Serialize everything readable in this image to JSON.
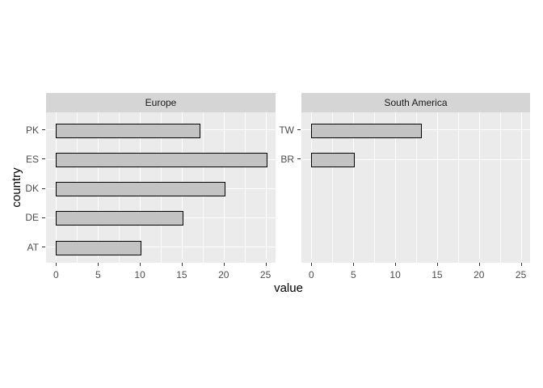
{
  "chart_data": {
    "type": "bar",
    "orientation": "horizontal",
    "title": "",
    "xlabel": "value",
    "ylabel": "country",
    "xlim": [
      -1.25,
      26.25
    ],
    "x_major_ticks": [
      0,
      5,
      10,
      15,
      20,
      25
    ],
    "x_minor_ticks": [
      2.5,
      7.5,
      12.5,
      17.5,
      22.5
    ],
    "grid": "on",
    "legend": "none",
    "facets": [
      {
        "label": "Europe",
        "categories": [
          "PK",
          "ES",
          "DK",
          "DE",
          "AT"
        ],
        "values": [
          17,
          25,
          20,
          15,
          10
        ]
      },
      {
        "label": "South America",
        "categories": [
          "TW",
          "BR"
        ],
        "values": [
          13,
          5
        ]
      }
    ],
    "colors": {
      "strip_bg": "#d5d5d5",
      "strip_text": "#1a1a1a",
      "panel_bg": "#ebebeb",
      "grid_major": "#ffffff",
      "grid_minor": "rgba(255,255,255,0.8)",
      "bar_fill": "#c3c3c3",
      "bar_stroke": "#000000",
      "tick_mark": "#333333",
      "tick_label": "#4d4d4d",
      "axis_title": "#000000"
    }
  }
}
